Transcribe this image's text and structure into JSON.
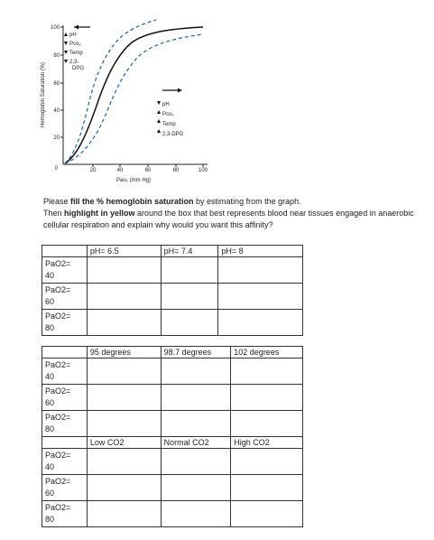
{
  "graph": {
    "y_ticks": [
      "100",
      "80",
      "60",
      "40",
      "20",
      "0"
    ],
    "x_ticks": [
      "20",
      "40",
      "60",
      "80",
      "100"
    ],
    "y_label": "Hemoglobin Saturation (%)",
    "x_label": "Pao₂ (mm Hg)",
    "left_shift_labels": [
      "pH",
      "Pco₂",
      "Temp",
      "2,3-",
      "DPG"
    ],
    "right_shift_labels": [
      "pH",
      "Pco₂",
      "Temp",
      "2,3-DPG"
    ]
  },
  "instructions": {
    "p1_a": "Please ",
    "p1_b": "fill the % hemoglobin saturation",
    "p1_c": " by estimating from the graph.",
    "p2_a": "Then ",
    "p2_b": "highlight in yellow",
    "p2_c": " around the box that best represents blood near tissues engaged in anaerobic cellular respiration and explain why would you want this affinity?"
  },
  "tables": [
    {
      "headers": [
        "pH= 6.5",
        "pH= 7.4",
        "pH= 8"
      ],
      "rows": [
        [
          "PaO2=",
          "40"
        ],
        [
          "PaO2=",
          "60"
        ],
        [
          "PaO2=",
          "80"
        ]
      ]
    },
    {
      "headers": [
        "95 degrees",
        "98.7 degrees",
        "102 degrees"
      ],
      "rows": [
        [
          "PaO2=",
          "40"
        ],
        [
          "PaO2=",
          "60"
        ],
        [
          "PaO2=",
          "80"
        ]
      ]
    },
    {
      "headers": [
        "Low CO2",
        "Normal CO2",
        "High CO2"
      ],
      "rows": [
        [
          "PaO2=",
          "40"
        ],
        [
          "PaO2=",
          "60"
        ],
        [
          "PaO2=",
          "80"
        ]
      ]
    }
  ]
}
